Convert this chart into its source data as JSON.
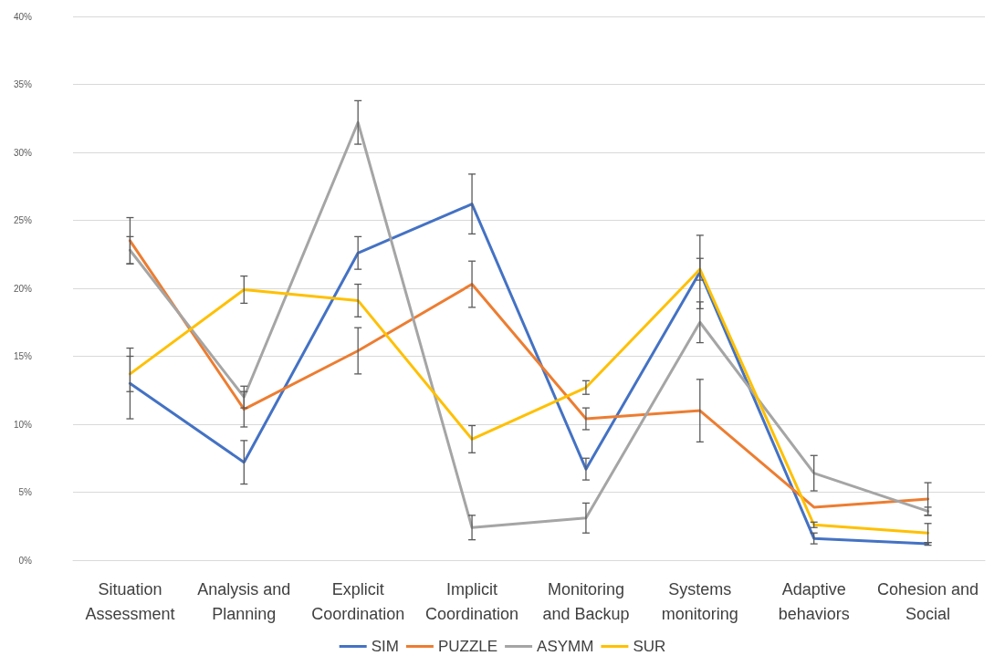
{
  "chart_data": {
    "type": "line",
    "categories": [
      "Situation\nAssessment",
      "Analysis and\nPlanning",
      "Explicit\nCoordination",
      "Implicit\nCoordination",
      "Monitoring\nand Backup",
      "Systems\nmonitoring",
      "Adaptive\nbehaviors",
      "Cohesion and\nSocial"
    ],
    "series": [
      {
        "name": "SIM",
        "color": "#4472c4",
        "values": [
          13.0,
          7.2,
          22.6,
          26.2,
          6.7,
          21.2,
          1.6,
          1.2
        ],
        "errors": [
          2.6,
          1.6,
          1.2,
          2.2,
          0.8,
          2.7,
          0.4,
          0.1
        ]
      },
      {
        "name": "PUZZLE",
        "color": "#ed7d31",
        "values": [
          23.5,
          11.1,
          15.4,
          20.3,
          10.4,
          11.0,
          3.9,
          4.5
        ],
        "errors": [
          1.7,
          1.3,
          1.7,
          1.7,
          0.8,
          2.3,
          null,
          1.2
        ]
      },
      {
        "name": "ASYMM",
        "color": "#a5a5a5",
        "values": [
          22.8,
          12.0,
          32.2,
          2.4,
          3.1,
          17.5,
          6.4,
          3.6
        ],
        "errors": [
          1.0,
          0.8,
          1.6,
          0.9,
          1.1,
          1.5,
          1.3,
          0.3
        ]
      },
      {
        "name": "SUR",
        "color": "#ffc000",
        "values": [
          13.7,
          19.9,
          19.1,
          8.9,
          12.7,
          21.4,
          2.6,
          2.0
        ],
        "errors": [
          1.3,
          1.0,
          1.2,
          1.0,
          0.5,
          0.8,
          0.2,
          0.7
        ]
      }
    ],
    "ylim": [
      0,
      40
    ],
    "yticks": [
      {
        "value": 0,
        "label": "0%"
      },
      {
        "value": 5,
        "label": "5%"
      },
      {
        "value": 10,
        "label": "10%"
      },
      {
        "value": 15,
        "label": "15%"
      },
      {
        "value": 20,
        "label": "20%"
      },
      {
        "value": 25,
        "label": "25%"
      },
      {
        "value": 30,
        "label": "30%"
      },
      {
        "value": 35,
        "label": "35%"
      },
      {
        "value": 40,
        "label": "40%"
      }
    ],
    "grid": "y",
    "legend": "bottom",
    "marker": "none",
    "line_style": "solid"
  }
}
